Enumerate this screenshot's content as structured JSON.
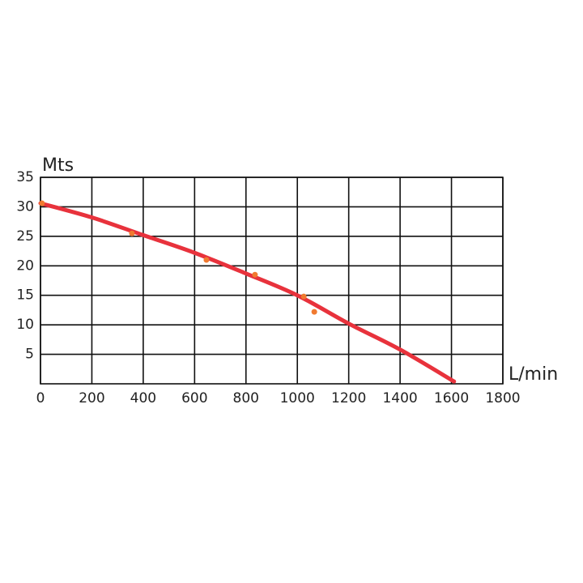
{
  "chart_data": {
    "type": "line",
    "y_label": "Mts",
    "x_label": "L/min",
    "xlim": [
      0,
      1800
    ],
    "xticks": [
      0,
      200,
      400,
      600,
      800,
      1000,
      1200,
      1400,
      1600,
      1800
    ],
    "ylim": [
      0,
      35
    ],
    "yticks": [
      5,
      10,
      15,
      20,
      25,
      30,
      35
    ],
    "grid": true,
    "series": [
      {
        "type": "line",
        "color": "#e8323c",
        "x": [
          0,
          200,
          400,
          600,
          800,
          1000,
          1200,
          1400,
          1610
        ],
        "values": [
          30.6,
          28.2,
          25.2,
          22.2,
          18.7,
          15.0,
          10.2,
          5.8,
          0.4
        ]
      },
      {
        "type": "scatter",
        "color": "#f07a30",
        "x": [
          6,
          356,
          646,
          835,
          1025,
          1066
        ],
        "values": [
          30.6,
          25.5,
          21.0,
          18.5,
          14.8,
          12.2
        ]
      }
    ]
  }
}
